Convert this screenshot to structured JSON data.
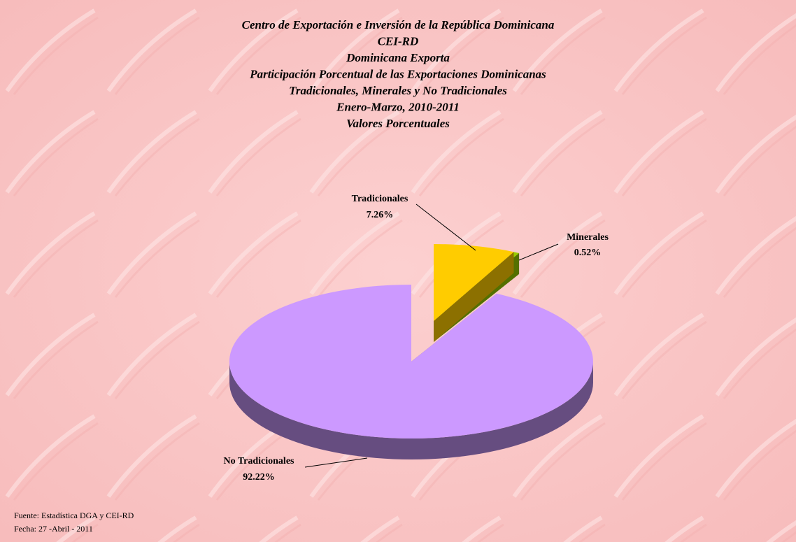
{
  "chart_data": {
    "type": "pie3d",
    "title": [
      "Centro de Exportación e Inversión de la República Dominicana",
      "CEI-RD",
      "Dominicana Exporta",
      "Participación Porcentual de las Exportaciones Dominicanas",
      "Tradicionales, Minerales y No Tradicionales",
      "Enero-Marzo, 2010-2011",
      "Valores Porcentuales"
    ],
    "categories": [
      "Tradicionales",
      "Minerales",
      "No Tradicionales"
    ],
    "values": [
      7.26,
      0.52,
      92.22
    ],
    "value_labels": [
      "7.26%",
      "0.52%",
      "92.22%"
    ],
    "colors": [
      "#ffcc00",
      "#99cc00",
      "#cc99ff"
    ],
    "source": "Fuente: Estadística DGA y CEI-RD",
    "date_note": "Fecha: 27 -Abril - 2011"
  }
}
